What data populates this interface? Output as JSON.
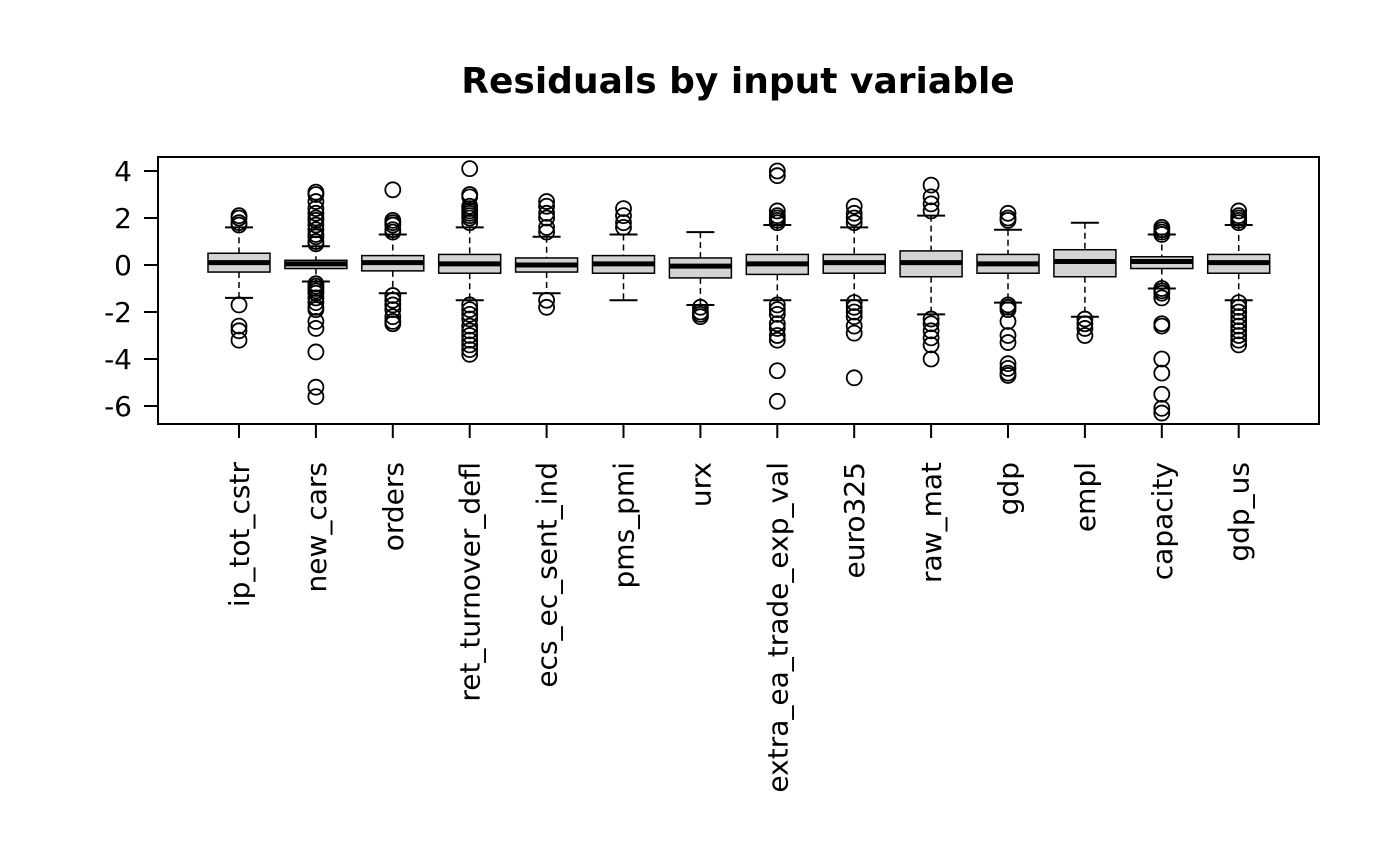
{
  "chart_data": {
    "type": "boxplot",
    "title": "Residuals by input variable",
    "xlabel": "",
    "ylabel": "",
    "ylim": [
      -6.8,
      4.5
    ],
    "y_ticks": [
      4,
      2,
      0,
      -2,
      -4,
      -6
    ],
    "y_tick_labels": [
      "4",
      "2",
      "0",
      "-2",
      "-4",
      "-6"
    ],
    "grid": false,
    "legend": "none",
    "box_fill": "#d3d3d3",
    "line_color": "#000000",
    "categories": [
      "ip_tot_cstr",
      "new_cars",
      "orders",
      "ret_turnover_defl",
      "ecs_ec_sent_ind",
      "pms_pmi",
      "urx",
      "extra_ea_trade_exp_val",
      "euro325",
      "raw_mat",
      "gdp",
      "empl",
      "capacity",
      "gdp_us"
    ],
    "boxes": [
      {
        "category": "ip_tot_cstr",
        "whisker_low": -1.4,
        "q1": -0.3,
        "median": 0.1,
        "q3": 0.5,
        "whisker_high": 1.6,
        "outliers": [
          2.1,
          2.0,
          1.8,
          1.7,
          -1.7,
          -2.6,
          -2.8,
          -3.2
        ]
      },
      {
        "category": "new_cars",
        "whisker_low": -0.7,
        "q1": -0.15,
        "median": 0.05,
        "q3": 0.2,
        "whisker_high": 0.8,
        "outliers": [
          3.1,
          3.0,
          2.7,
          2.4,
          2.2,
          2.0,
          1.9,
          1.7,
          1.5,
          1.3,
          1.2,
          1.0,
          0.9,
          -0.8,
          -0.9,
          -1.0,
          -1.1,
          -1.2,
          -1.4,
          -1.6,
          -1.8,
          -1.9,
          -2.4,
          -2.7,
          -3.7,
          -5.2,
          -5.6
        ]
      },
      {
        "category": "orders",
        "whisker_low": -1.2,
        "q1": -0.25,
        "median": 0.1,
        "q3": 0.4,
        "whisker_high": 1.3,
        "outliers": [
          3.2,
          1.9,
          1.8,
          1.7,
          1.5,
          1.4,
          -1.3,
          -1.5,
          -1.7,
          -1.9,
          -2.2,
          -2.4,
          -2.5
        ]
      },
      {
        "category": "ret_turnover_defl",
        "whisker_low": -1.5,
        "q1": -0.35,
        "median": 0.05,
        "q3": 0.45,
        "whisker_high": 1.6,
        "outliers": [
          4.1,
          3.0,
          2.9,
          2.5,
          2.4,
          2.3,
          2.2,
          2.1,
          2.0,
          1.8,
          -1.7,
          -1.9,
          -2.1,
          -2.3,
          -2.6,
          -2.8,
          -3.0,
          -3.2,
          -3.4,
          -3.6,
          -3.8
        ]
      },
      {
        "category": "ecs_ec_sent_ind",
        "whisker_low": -1.2,
        "q1": -0.3,
        "median": 0.0,
        "q3": 0.3,
        "whisker_high": 1.2,
        "outliers": [
          2.7,
          2.5,
          2.2,
          2.0,
          1.6,
          1.4,
          -1.5,
          -1.8
        ]
      },
      {
        "category": "pms_pmi",
        "whisker_low": -1.5,
        "q1": -0.35,
        "median": 0.05,
        "q3": 0.4,
        "whisker_high": 1.3,
        "outliers": [
          2.4,
          2.1,
          1.8,
          1.6
        ]
      },
      {
        "category": "urx",
        "whisker_low": -1.7,
        "q1": -0.55,
        "median": -0.05,
        "q3": 0.3,
        "whisker_high": 1.4,
        "outliers": [
          -1.8,
          -2.0,
          -2.1,
          -2.2
        ]
      },
      {
        "category": "extra_ea_trade_exp_val",
        "whisker_low": -1.5,
        "q1": -0.4,
        "median": 0.05,
        "q3": 0.45,
        "whisker_high": 1.7,
        "outliers": [
          4.0,
          3.8,
          2.3,
          2.1,
          2.0,
          1.9,
          1.8,
          -1.7,
          -1.9,
          -2.1,
          -2.5,
          -2.7,
          -3.0,
          -3.2,
          -4.5,
          -5.8
        ]
      },
      {
        "category": "euro325",
        "whisker_low": -1.5,
        "q1": -0.35,
        "median": 0.1,
        "q3": 0.45,
        "whisker_high": 1.6,
        "outliers": [
          2.5,
          2.2,
          2.0,
          1.8,
          -1.6,
          -1.8,
          -2.0,
          -2.2,
          -2.6,
          -2.9,
          -4.8
        ]
      },
      {
        "category": "raw_mat",
        "whisker_low": -2.1,
        "q1": -0.5,
        "median": 0.1,
        "q3": 0.6,
        "whisker_high": 2.1,
        "outliers": [
          3.4,
          2.9,
          2.6,
          2.3,
          -2.3,
          -2.5,
          -2.8,
          -3.1,
          -3.4,
          -4.0
        ]
      },
      {
        "category": "gdp",
        "whisker_low": -1.6,
        "q1": -0.35,
        "median": 0.05,
        "q3": 0.45,
        "whisker_high": 1.5,
        "outliers": [
          2.2,
          2.0,
          1.9,
          -1.7,
          -1.8,
          -1.9,
          -2.4,
          -3.0,
          -3.3,
          -4.2,
          -4.4,
          -4.6,
          -4.7
        ]
      },
      {
        "category": "empl",
        "whisker_low": -2.2,
        "q1": -0.5,
        "median": 0.15,
        "q3": 0.65,
        "whisker_high": 1.8,
        "outliers": [
          -2.3,
          -2.5,
          -2.7,
          -3.0
        ]
      },
      {
        "category": "capacity",
        "whisker_low": -1.0,
        "q1": -0.15,
        "median": 0.15,
        "q3": 0.35,
        "whisker_high": 1.3,
        "outliers": [
          1.6,
          1.5,
          1.4,
          1.3,
          -1.0,
          -1.1,
          -1.2,
          -1.4,
          -2.5,
          -2.6,
          -4.0,
          -4.6,
          -5.5,
          -6.1,
          -6.3
        ]
      },
      {
        "category": "gdp_us",
        "whisker_low": -1.5,
        "q1": -0.35,
        "median": 0.1,
        "q3": 0.45,
        "whisker_high": 1.7,
        "outliers": [
          2.3,
          2.1,
          2.0,
          1.9,
          1.8,
          -1.6,
          -1.8,
          -2.0,
          -2.2,
          -2.4,
          -2.6,
          -2.8,
          -3.0,
          -3.2,
          -3.4
        ]
      }
    ]
  }
}
